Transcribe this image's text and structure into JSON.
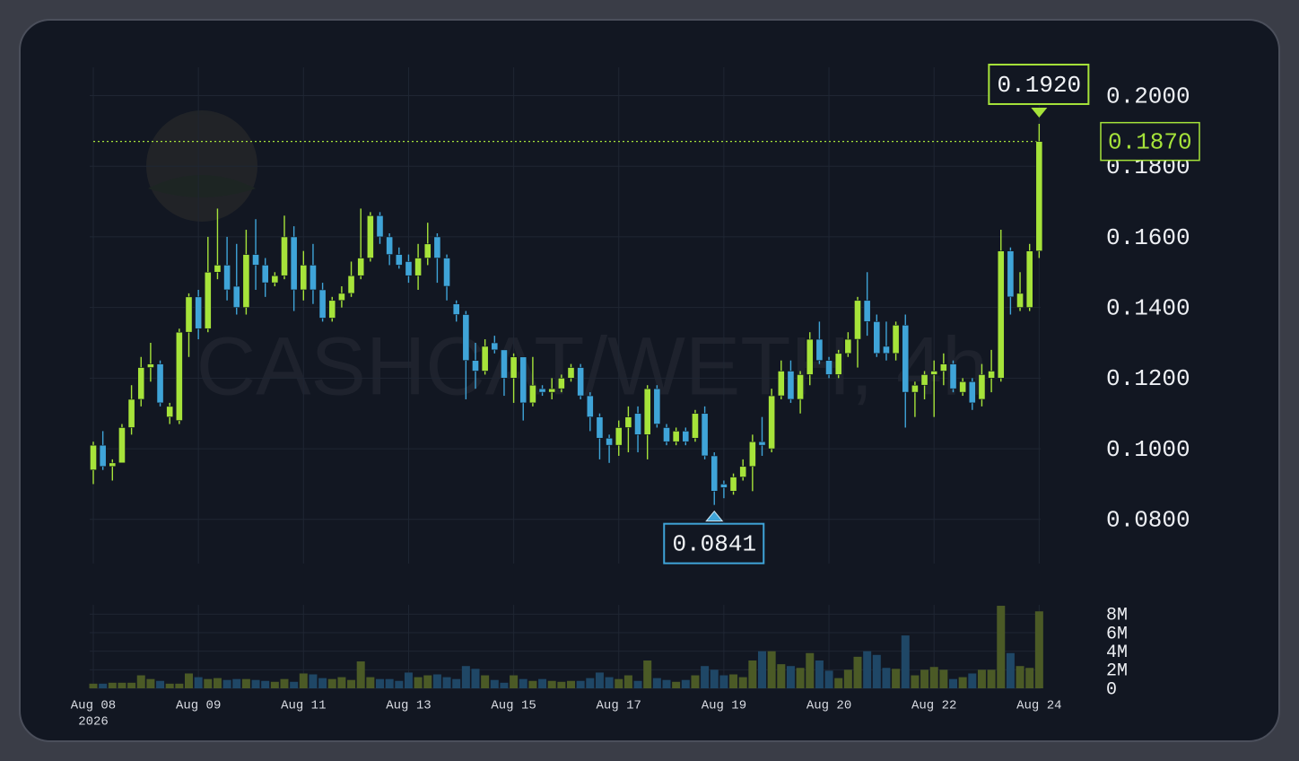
{
  "chart_data": {
    "type": "candlestick",
    "watermark": "CASHCAT/WETH, 4h",
    "categories": [
      "Aug 08",
      null,
      null,
      null,
      null,
      null,
      null,
      null,
      null,
      null,
      null,
      "Aug 09",
      null,
      null,
      null,
      null,
      null,
      null,
      null,
      null,
      null,
      null,
      "Aug 11",
      null,
      null,
      null,
      null,
      null,
      null,
      null,
      null,
      null,
      null,
      "Aug 13",
      null,
      null,
      null,
      null,
      null,
      null,
      null,
      null,
      null,
      null,
      "Aug 15",
      null,
      null,
      null,
      null,
      null,
      null,
      null,
      null,
      null,
      null,
      "Aug 17",
      null,
      null,
      null,
      null,
      null,
      null,
      null,
      null,
      null,
      null,
      "Aug 19",
      null,
      null,
      null,
      null,
      null,
      null,
      null,
      null,
      null,
      null,
      "Aug 20",
      null,
      null,
      null,
      null,
      null,
      null,
      null,
      null,
      null,
      null,
      "Aug 22",
      null,
      null,
      null,
      null,
      null,
      null,
      null,
      null,
      null,
      null,
      "Aug 24"
    ],
    "year": "2026",
    "open": [
      0.094,
      0.101,
      0.095,
      0.096,
      0.106,
      0.114,
      0.123,
      0.124,
      0.109,
      0.108,
      0.133,
      0.143,
      0.134,
      0.15,
      0.152,
      0.146,
      0.14,
      0.155,
      0.152,
      0.147,
      0.149,
      0.16,
      0.145,
      0.152,
      0.145,
      0.137,
      0.142,
      0.144,
      0.149,
      0.154,
      0.166,
      0.16,
      0.155,
      0.153,
      0.149,
      0.154,
      0.16,
      0.154,
      0.141,
      0.138,
      0.125,
      0.122,
      0.13,
      0.128,
      0.12,
      0.126,
      0.113,
      0.117,
      0.116,
      0.117,
      0.12,
      0.123,
      0.115,
      0.109,
      0.103,
      0.101,
      0.106,
      0.11,
      0.104,
      0.117,
      0.106,
      0.102,
      0.105,
      0.103,
      0.11,
      0.098,
      0.09,
      0.088,
      0.092,
      0.095,
      0.102,
      0.1,
      0.115,
      0.122,
      0.114,
      0.121,
      0.131,
      0.125,
      0.121,
      0.127,
      0.131,
      0.142,
      0.136,
      0.129,
      0.127,
      0.135,
      0.116,
      0.118,
      0.121,
      0.122,
      0.124,
      0.116,
      0.119,
      0.114,
      0.12,
      0.12,
      0.156,
      0.14,
      0.14,
      0.156
    ],
    "high": [
      0.102,
      0.105,
      0.097,
      0.107,
      0.118,
      0.126,
      0.13,
      0.125,
      0.113,
      0.134,
      0.144,
      0.145,
      0.16,
      0.168,
      0.16,
      0.158,
      0.162,
      0.165,
      0.154,
      0.15,
      0.166,
      0.163,
      0.156,
      0.158,
      0.147,
      0.143,
      0.146,
      0.153,
      0.168,
      0.167,
      0.167,
      0.161,
      0.157,
      0.155,
      0.158,
      0.164,
      0.161,
      0.155,
      0.142,
      0.139,
      0.13,
      0.131,
      0.132,
      0.128,
      0.127,
      0.126,
      0.126,
      0.118,
      0.12,
      0.121,
      0.124,
      0.124,
      0.116,
      0.11,
      0.104,
      0.108,
      0.112,
      0.112,
      0.118,
      0.118,
      0.107,
      0.106,
      0.106,
      0.111,
      0.112,
      0.099,
      0.091,
      0.093,
      0.097,
      0.104,
      0.109,
      0.117,
      0.125,
      0.125,
      0.122,
      0.133,
      0.136,
      0.126,
      0.128,
      0.133,
      0.143,
      0.15,
      0.138,
      0.136,
      0.136,
      0.138,
      0.119,
      0.122,
      0.125,
      0.127,
      0.125,
      0.12,
      0.12,
      0.124,
      0.128,
      0.162,
      0.157,
      0.15,
      0.158,
      0.192
    ],
    "low": [
      0.09,
      0.094,
      0.091,
      0.096,
      0.104,
      0.112,
      0.119,
      0.112,
      0.107,
      0.107,
      0.126,
      0.131,
      0.133,
      0.148,
      0.142,
      0.138,
      0.138,
      0.145,
      0.143,
      0.146,
      0.148,
      0.139,
      0.142,
      0.141,
      0.136,
      0.136,
      0.14,
      0.143,
      0.148,
      0.153,
      0.158,
      0.152,
      0.151,
      0.147,
      0.145,
      0.152,
      0.147,
      0.142,
      0.136,
      0.114,
      0.117,
      0.121,
      0.127,
      0.115,
      0.113,
      0.108,
      0.112,
      0.115,
      0.114,
      0.116,
      0.119,
      0.114,
      0.105,
      0.097,
      0.096,
      0.098,
      0.099,
      0.099,
      0.097,
      0.106,
      0.101,
      0.101,
      0.101,
      0.102,
      0.097,
      0.0841,
      0.086,
      0.087,
      0.091,
      0.088,
      0.098,
      0.099,
      0.114,
      0.113,
      0.11,
      0.118,
      0.124,
      0.12,
      0.12,
      0.126,
      0.123,
      0.132,
      0.126,
      0.125,
      0.125,
      0.106,
      0.109,
      0.114,
      0.109,
      0.118,
      0.116,
      0.115,
      0.111,
      0.112,
      0.116,
      0.119,
      0.138,
      0.139,
      0.139,
      0.154
    ],
    "close": [
      0.101,
      0.095,
      0.096,
      0.106,
      0.114,
      0.123,
      0.124,
      0.113,
      0.112,
      0.133,
      0.143,
      0.134,
      0.15,
      0.152,
      0.145,
      0.14,
      0.155,
      0.152,
      0.147,
      0.149,
      0.16,
      0.145,
      0.152,
      0.145,
      0.137,
      0.142,
      0.144,
      0.149,
      0.154,
      0.166,
      0.16,
      0.155,
      0.152,
      0.149,
      0.154,
      0.158,
      0.154,
      0.146,
      0.138,
      0.125,
      0.122,
      0.129,
      0.128,
      0.12,
      0.126,
      0.113,
      0.118,
      0.116,
      0.117,
      0.12,
      0.123,
      0.115,
      0.109,
      0.103,
      0.101,
      0.106,
      0.109,
      0.104,
      0.117,
      0.107,
      0.102,
      0.105,
      0.102,
      0.11,
      0.098,
      0.088,
      0.089,
      0.092,
      0.095,
      0.102,
      0.101,
      0.115,
      0.122,
      0.114,
      0.121,
      0.131,
      0.125,
      0.121,
      0.127,
      0.131,
      0.142,
      0.136,
      0.127,
      0.127,
      0.135,
      0.116,
      0.118,
      0.121,
      0.122,
      0.124,
      0.117,
      0.119,
      0.113,
      0.121,
      0.122,
      0.156,
      0.143,
      0.144,
      0.156,
      0.187
    ],
    "volume": [
      500000,
      500000,
      600000,
      600000,
      600000,
      1400000,
      1000000,
      800000,
      500000,
      500000,
      1600000,
      1200000,
      1000000,
      1100000,
      900000,
      1000000,
      1000000,
      900000,
      800000,
      700000,
      1000000,
      700000,
      1600000,
      1500000,
      1100000,
      1000000,
      1200000,
      900000,
      2900000,
      1200000,
      1000000,
      1000000,
      800000,
      1700000,
      1200000,
      1400000,
      1500000,
      1200000,
      1000000,
      2400000,
      2100000,
      1400000,
      900000,
      600000,
      1400000,
      1000000,
      800000,
      1000000,
      800000,
      700000,
      800000,
      800000,
      1100000,
      1700000,
      1200000,
      1000000,
      1400000,
      800000,
      3000000,
      1100000,
      900000,
      700000,
      900000,
      1400000,
      2400000,
      2000000,
      1400000,
      1500000,
      1200000,
      3000000,
      4000000,
      4000000,
      2600000,
      2400000,
      2200000,
      3800000,
      3000000,
      1900000,
      1100000,
      2000000,
      3400000,
      4000000,
      3600000,
      2200000,
      2100000,
      5700000,
      1400000,
      2000000,
      2300000,
      2000000,
      1000000,
      1200000,
      1600000,
      2000000,
      2000000,
      8900000,
      3800000,
      2400000,
      2200000,
      8300000
    ],
    "up_color": "#a6e33a",
    "down_color": "#3fa4d8",
    "volume_up_color": "#4b5a26",
    "volume_down_color": "#1f4766",
    "ylim": [
      0.0675,
      0.208
    ],
    "yticks": [
      {
        "value": 0.08,
        "label": "0.0800"
      },
      {
        "value": 0.1,
        "label": "0.1000"
      },
      {
        "value": 0.12,
        "label": "0.1200"
      },
      {
        "value": 0.14,
        "label": "0.1400"
      },
      {
        "value": 0.16,
        "label": "0.1600"
      },
      {
        "value": 0.18,
        "label": "0.1800"
      },
      {
        "value": 0.2,
        "label": "0.2000"
      }
    ],
    "volume_ylim": [
      0,
      9000000
    ],
    "volume_yticks": [
      0,
      {
        "value": 2000000,
        "label": "2M"
      },
      {
        "value": 4000000,
        "label": "4M"
      },
      {
        "value": 6000000,
        "label": "6M"
      },
      {
        "value": 8000000,
        "label": "8M"
      }
    ],
    "last_price": {
      "value": 0.187,
      "label": "0.1870"
    },
    "high_marker": {
      "value": 0.192,
      "label": "0.1920"
    },
    "low_marker": {
      "value": 0.0841,
      "label": "0.0841"
    },
    "grid": true
  }
}
